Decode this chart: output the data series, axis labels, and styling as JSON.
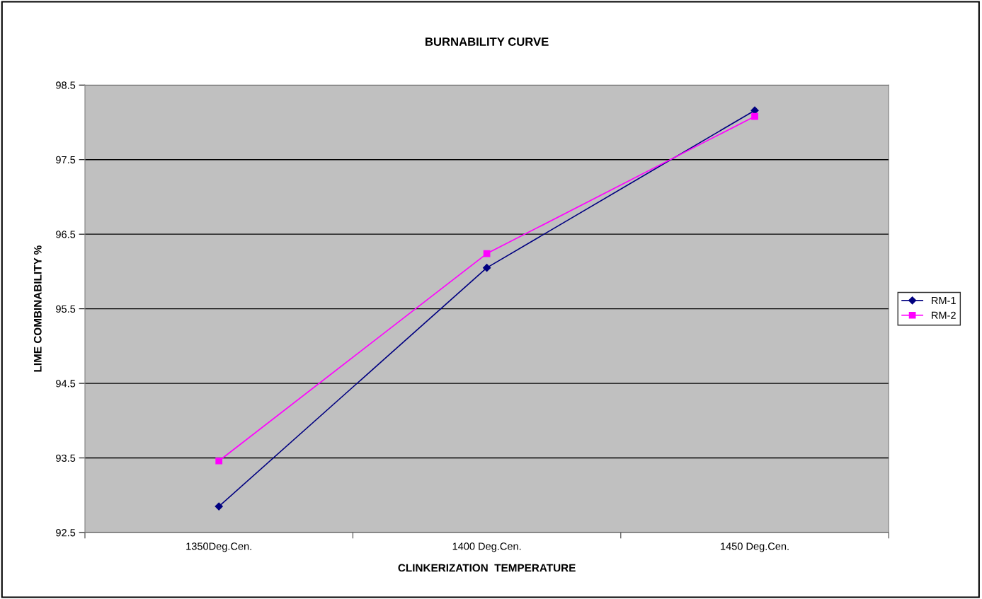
{
  "chart_data": {
    "type": "line",
    "title": "BURNABILITY CURVE",
    "xlabel": "CLINKERIZATION  TEMPERATURE",
    "ylabel": "LIME COMBINABILITY %",
    "categories": [
      "1350Deg.Cen.",
      "1400 Deg.Cen.",
      "1450 Deg.Cen."
    ],
    "series": [
      {
        "name": "RM-1",
        "color": "#000080",
        "marker": "diamond",
        "values": [
          92.85,
          96.05,
          98.16
        ]
      },
      {
        "name": "RM-2",
        "color": "#ff00ff",
        "marker": "square",
        "values": [
          93.46,
          96.24,
          98.08
        ]
      }
    ],
    "ylim": [
      92.5,
      98.5
    ],
    "yticks": [
      92.5,
      93.5,
      94.5,
      95.5,
      96.5,
      97.5,
      98.5
    ],
    "grid": "y",
    "legend": "right",
    "line_style": "solid"
  }
}
